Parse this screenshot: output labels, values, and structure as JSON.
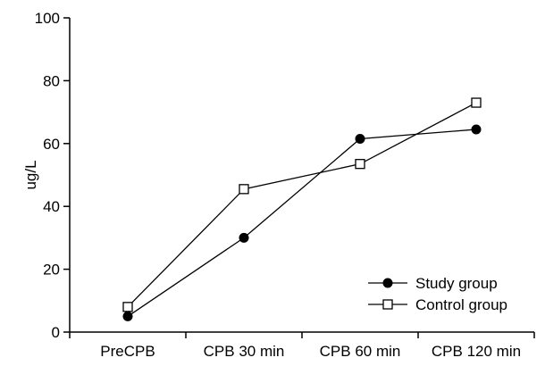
{
  "chart_data": {
    "type": "line",
    "ylabel": "ug/L",
    "ylim": [
      0,
      100
    ],
    "yticks": [
      0,
      20,
      40,
      60,
      80,
      100
    ],
    "categories": [
      "PreCPB",
      "CPB 30 min",
      "CPB 60 min",
      "CPB 120 min"
    ],
    "grid": false,
    "legend_position": "bottom-right",
    "series": [
      {
        "name": "Study group",
        "marker": "filled-circle",
        "color": "#000000",
        "values": [
          5,
          30,
          61.5,
          64.5
        ]
      },
      {
        "name": "Control group",
        "marker": "open-square",
        "color": "#000000",
        "values": [
          8,
          45.5,
          53.5,
          73
        ]
      }
    ]
  }
}
